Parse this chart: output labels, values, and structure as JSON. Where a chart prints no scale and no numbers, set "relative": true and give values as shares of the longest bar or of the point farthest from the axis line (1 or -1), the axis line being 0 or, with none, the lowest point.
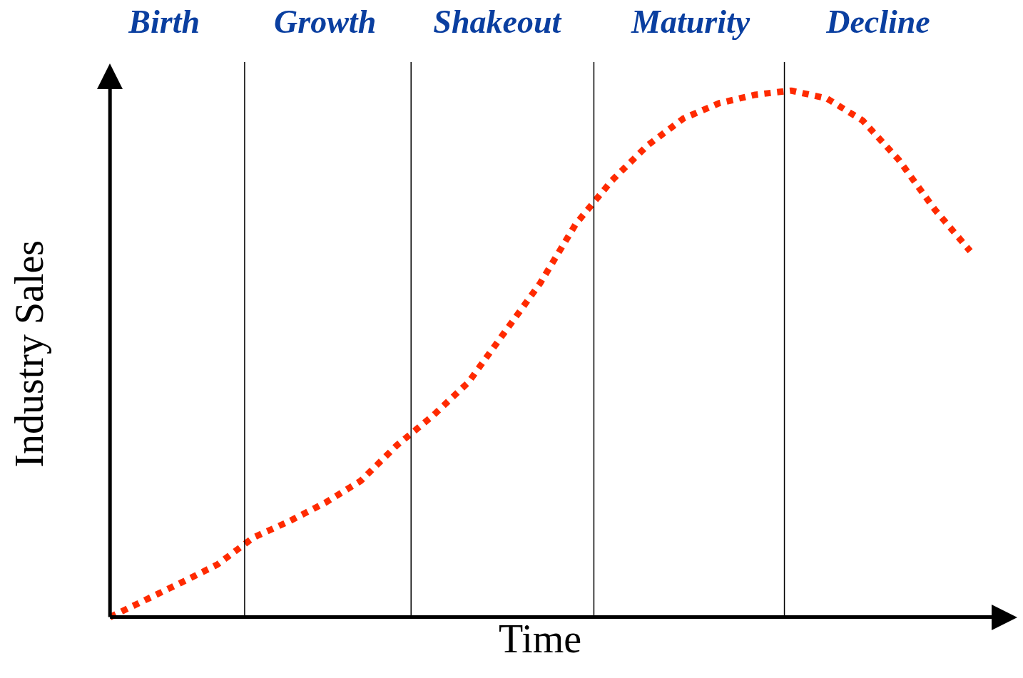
{
  "chart_data": {
    "type": "line",
    "xlabel": "Time",
    "ylabel": "Industry Sales",
    "relative": true,
    "grid": false,
    "legend": false,
    "marker": "none",
    "line_style": "dotted",
    "categories": [
      null,
      null,
      null,
      null,
      null,
      null,
      null,
      null,
      null,
      null,
      null,
      null,
      null,
      null,
      null,
      null,
      null,
      null,
      null,
      null,
      null,
      null,
      null,
      null,
      null
    ],
    "series": [
      {
        "color": "#ff2a00",
        "values": [
          0,
          0.033,
          0.066,
          0.1,
          0.151,
          0.182,
          0.217,
          0.259,
          0.326,
          0.382,
          0.446,
          0.54,
          0.634,
          0.747,
          0.829,
          0.896,
          0.947,
          0.976,
          0.992,
          1,
          0.985,
          0.943,
          0.869,
          0.775,
          0.695
        ]
      }
    ],
    "annotations": [
      "Birth",
      "Growth",
      "Shakeout",
      "Maturity",
      "Decline"
    ]
  }
}
